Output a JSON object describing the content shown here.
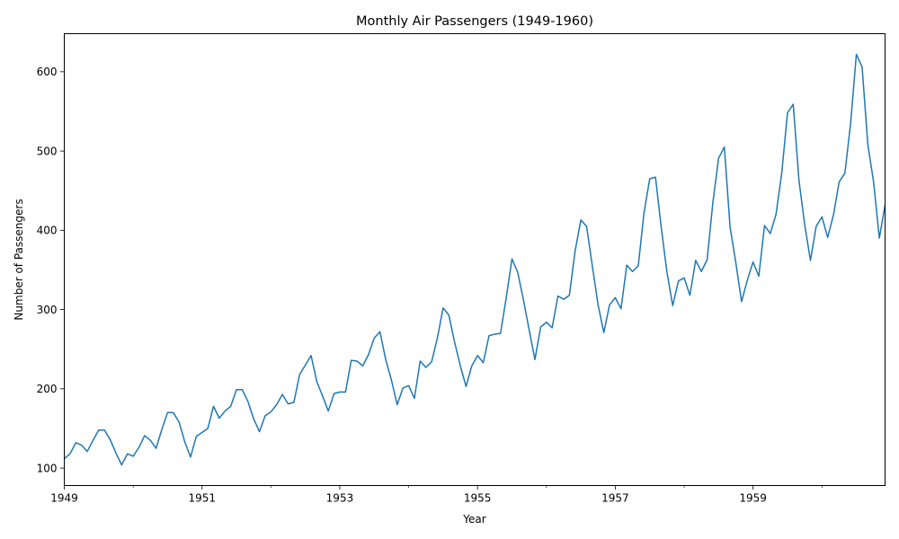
{
  "chart_data": {
    "type": "line",
    "title": "Monthly Air Passengers (1949-1960)",
    "xlabel": "Year",
    "ylabel": "Number of Passengers",
    "x_start": "1949-01",
    "x_end": "1960-12",
    "xlim": [
      1949.0,
      1960.9167
    ],
    "ylim": [
      78,
      648
    ],
    "x_ticks": [
      1949,
      1951,
      1953,
      1955,
      1957,
      1959
    ],
    "x_tick_labels": [
      "1949",
      "1951",
      "1953",
      "1955",
      "1957",
      "1959"
    ],
    "x_minor_ticks": [
      1950,
      1952,
      1954,
      1956,
      1958,
      1960
    ],
    "y_ticks": [
      100,
      200,
      300,
      400,
      500,
      600
    ],
    "y_tick_labels": [
      "100",
      "200",
      "300",
      "400",
      "500",
      "600"
    ],
    "grid": false,
    "series": [
      {
        "color": "#1f77b4",
        "values": [
          112,
          118,
          132,
          129,
          121,
          135,
          148,
          148,
          136,
          119,
          104,
          118,
          115,
          126,
          141,
          135,
          125,
          149,
          170,
          170,
          158,
          133,
          114,
          140,
          145,
          150,
          178,
          163,
          172,
          178,
          199,
          199,
          184,
          162,
          146,
          166,
          171,
          180,
          193,
          181,
          183,
          218,
          230,
          242,
          209,
          191,
          172,
          194,
          196,
          196,
          236,
          235,
          229,
          243,
          264,
          272,
          237,
          211,
          180,
          201,
          204,
          188,
          235,
          227,
          234,
          264,
          302,
          293,
          259,
          229,
          203,
          229,
          242,
          233,
          267,
          269,
          270,
          315,
          364,
          347,
          312,
          274,
          237,
          278,
          284,
          277,
          317,
          313,
          318,
          374,
          413,
          405,
          355,
          306,
          271,
          306,
          315,
          301,
          356,
          348,
          355,
          422,
          465,
          467,
          404,
          347,
          305,
          336,
          340,
          318,
          362,
          348,
          363,
          435,
          491,
          505,
          404,
          359,
          310,
          337,
          360,
          342,
          406,
          396,
          420,
          472,
          548,
          559,
          463,
          407,
          362,
          405,
          417,
          391,
          419,
          461,
          472,
          535,
          622,
          606,
          508,
          461,
          390,
          432
        ]
      }
    ]
  }
}
